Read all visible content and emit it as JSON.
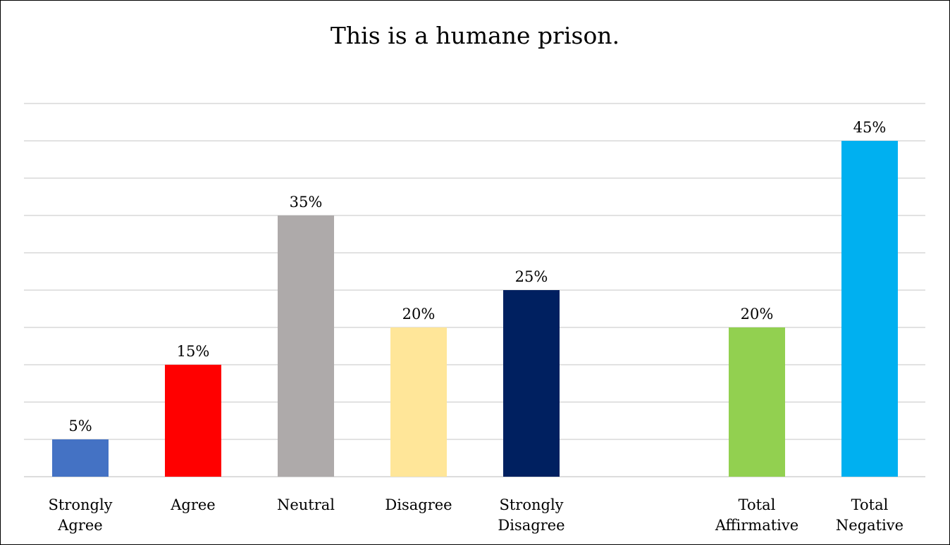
{
  "chart_data": {
    "type": "bar",
    "title": "This is a humane prison.",
    "categories": [
      [
        "Strongly",
        "Agree"
      ],
      [
        "Agree"
      ],
      [
        "Neutral"
      ],
      [
        "Disagree"
      ],
      [
        "Strongly",
        "Disagree"
      ],
      [],
      [
        "Total",
        "Affirmative"
      ],
      [
        "Total",
        "Negative"
      ]
    ],
    "values": [
      5,
      15,
      35,
      20,
      25,
      null,
      20,
      45
    ],
    "data_labels": [
      "5%",
      "15%",
      "35%",
      "20%",
      "25%",
      "",
      "20%",
      "45%"
    ],
    "colors": [
      "#4472c4",
      "#ff0000",
      "#aeaaaa",
      "#ffe699",
      "#002060",
      null,
      "#92d050",
      "#00b0f0"
    ],
    "ylim": [
      0,
      50
    ],
    "grid": true,
    "xlabel": "",
    "ylabel": ""
  }
}
